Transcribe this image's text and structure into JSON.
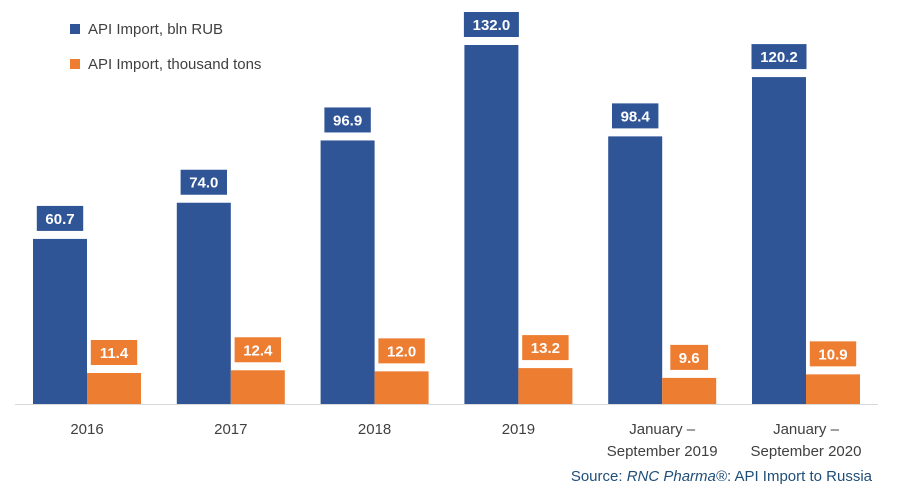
{
  "chart_data": {
    "type": "bar",
    "categories": [
      "2016",
      "2017",
      "2018",
      "2019",
      "January –\nSeptember 2019",
      "January –\nSeptember 2020"
    ],
    "series": [
      {
        "name": "API Import, bln RUB",
        "color": "#2f5597",
        "values": [
          60.7,
          74.0,
          96.9,
          132.0,
          98.4,
          120.2
        ],
        "labels": [
          "60.7",
          "74.0",
          "96.9",
          "132.0",
          "98.4",
          "120.2"
        ]
      },
      {
        "name": "API Import, thousand tons",
        "color": "#ed7d31",
        "values": [
          11.4,
          12.4,
          12.0,
          13.2,
          9.6,
          10.9
        ],
        "labels": [
          "11.4",
          "12.4",
          "12.0",
          "13.2",
          "9.6",
          "10.9"
        ]
      }
    ],
    "legend_position": "top-left",
    "grid": false
  },
  "source": {
    "prefix": "Source: ",
    "brand": "RNC Pharma®",
    "suffix": ": API Import to Russia"
  }
}
